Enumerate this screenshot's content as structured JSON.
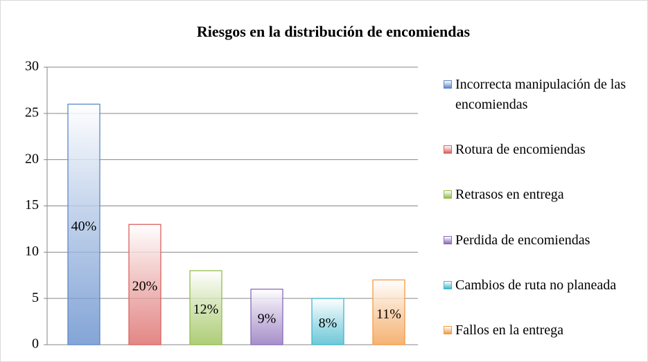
{
  "chart_data": {
    "type": "bar",
    "title": "Riesgos en la distribución de encomiendas",
    "categories": [
      "Incorrecta manipulación de las encomiendas",
      "Rotura de encomiendas",
      "Retrasos en entrega",
      "Perdida de encomiendas",
      "Cambios de ruta no planeada",
      "Fallos en la entrega"
    ],
    "values": [
      26,
      13,
      8,
      6,
      5,
      7
    ],
    "data_labels": [
      "40%",
      "20%",
      "12%",
      "9%",
      "8%",
      "11%"
    ],
    "colors": [
      "#5b87c9",
      "#d9605e",
      "#93bd4a",
      "#8a6bb8",
      "#3fb6cc",
      "#f29a45"
    ],
    "ylim": [
      0,
      30
    ],
    "yticks": [
      0,
      5,
      10,
      15,
      20,
      25,
      30
    ],
    "grid": true,
    "legend": "right"
  }
}
